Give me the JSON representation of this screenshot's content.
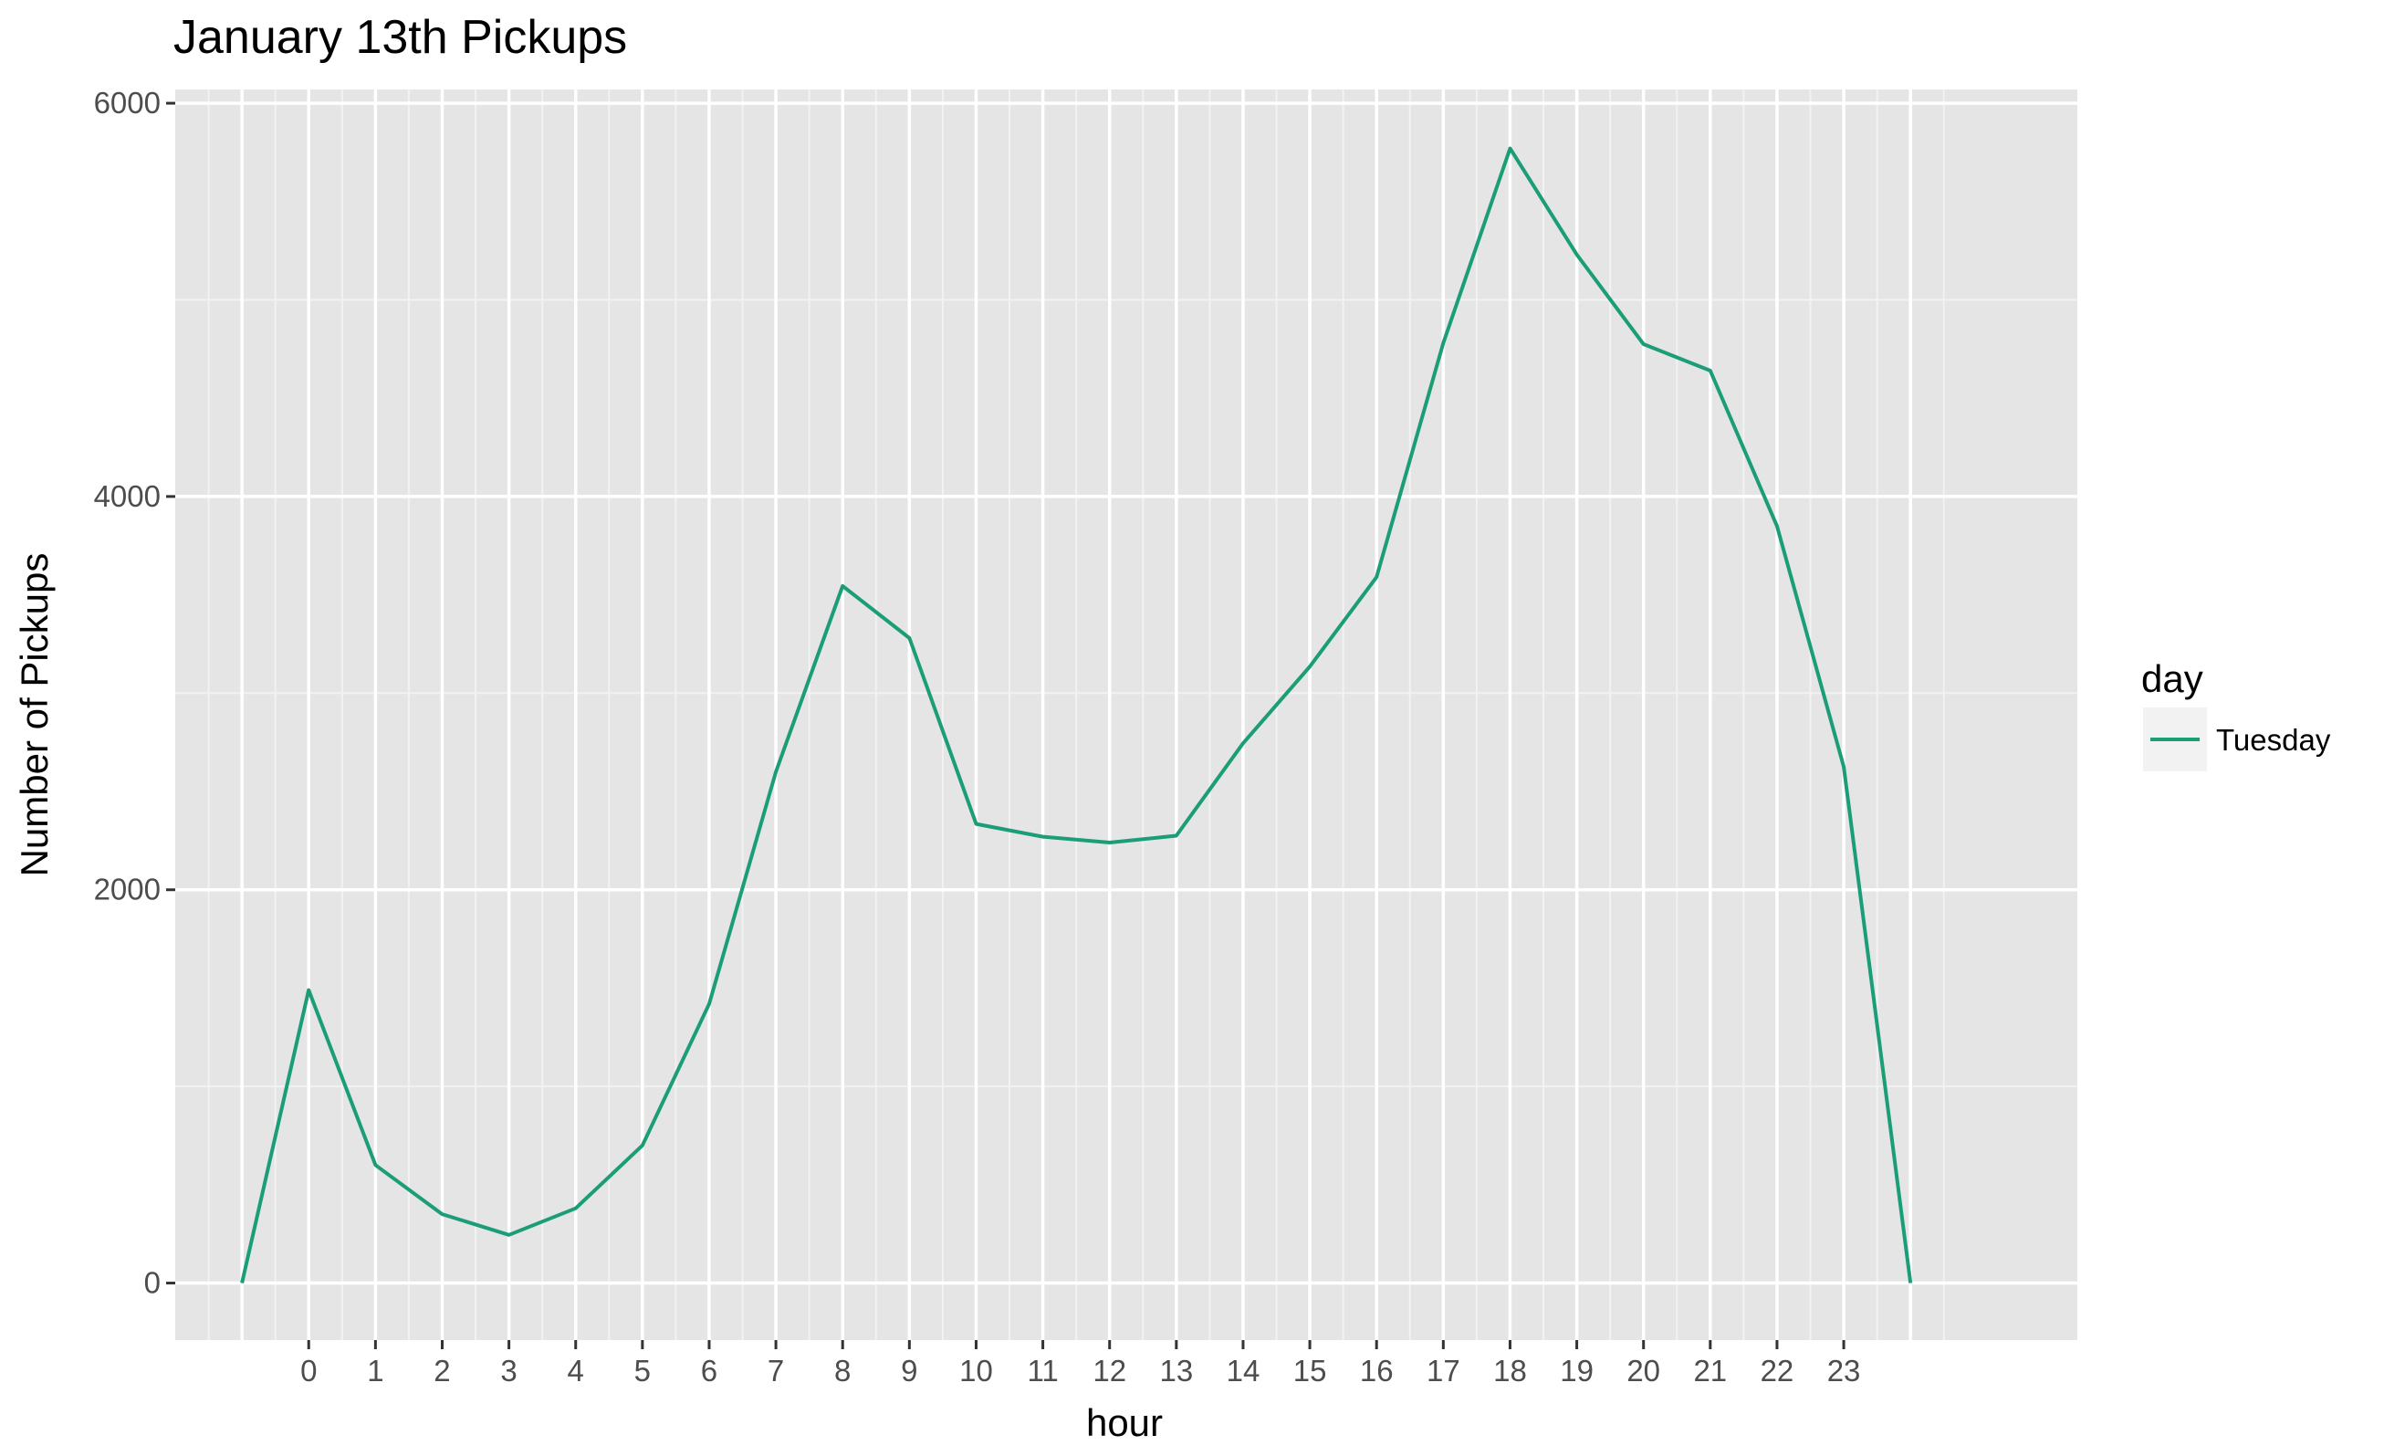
{
  "chart_data": {
    "type": "line",
    "title": "January 13th Pickups",
    "xlabel": "hour",
    "ylabel": "Number of Pickups",
    "x_tick_labels": [
      "0",
      "1",
      "2",
      "3",
      "4",
      "5",
      "6",
      "7",
      "8",
      "9",
      "10",
      "11",
      "12",
      "13",
      "14",
      "15",
      "16",
      "17",
      "18",
      "19",
      "20",
      "21",
      "22",
      "23"
    ],
    "y_ticks": [
      0,
      2000,
      4000,
      6000
    ],
    "y_tick_labels": [
      "0",
      "2000",
      "4000",
      "6000"
    ],
    "ylim": [
      -290,
      6070
    ],
    "grid": true,
    "panel_background": "#e5e5e5",
    "legend": {
      "title": "day",
      "placement": "right"
    },
    "series": [
      {
        "name": "Tuesday",
        "color": "#1b9e77",
        "points": [
          {
            "x": -1,
            "y": 0
          },
          {
            "x": 0,
            "y": 1490
          },
          {
            "x": 1,
            "y": 600
          },
          {
            "x": 2,
            "y": 350
          },
          {
            "x": 3,
            "y": 245
          },
          {
            "x": 4,
            "y": 380
          },
          {
            "x": 5,
            "y": 700
          },
          {
            "x": 6,
            "y": 1420
          },
          {
            "x": 7,
            "y": 2600
          },
          {
            "x": 8,
            "y": 3545
          },
          {
            "x": 9,
            "y": 3280
          },
          {
            "x": 10,
            "y": 2335
          },
          {
            "x": 11,
            "y": 2270
          },
          {
            "x": 12,
            "y": 2240
          },
          {
            "x": 13,
            "y": 2275
          },
          {
            "x": 14,
            "y": 2745
          },
          {
            "x": 15,
            "y": 3135
          },
          {
            "x": 16,
            "y": 3590
          },
          {
            "x": 17,
            "y": 4780
          },
          {
            "x": 18,
            "y": 5770
          },
          {
            "x": 19,
            "y": 5230
          },
          {
            "x": 20,
            "y": 4775
          },
          {
            "x": 21,
            "y": 4640
          },
          {
            "x": 22,
            "y": 3850
          },
          {
            "x": 23,
            "y": 2625
          },
          {
            "x": 24,
            "y": 0
          }
        ]
      }
    ]
  }
}
